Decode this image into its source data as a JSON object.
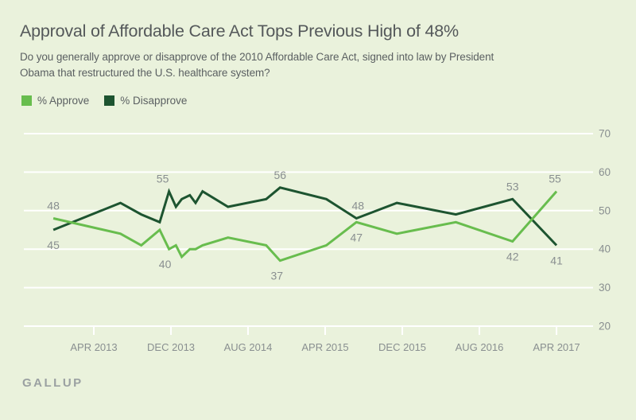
{
  "page": {
    "background": "#eaf2dc"
  },
  "header": {
    "title": "Approval of Affordable Care Act Tops Previous High of 48%",
    "subtitle_line1": "Do you generally approve or disapprove of the 2010 Affordable Care Act, signed into law by President",
    "subtitle_line2": "Obama that restructured the U.S. healthcare system?"
  },
  "legend": {
    "items": [
      {
        "label": "% Approve",
        "color": "#68bd4e"
      },
      {
        "label": "% Disapprove",
        "color": "#1d5430"
      }
    ]
  },
  "footer": {
    "brand": "GALLUP"
  },
  "colors": {
    "background": "#eaf2dc",
    "approve_line": "#68bd4e",
    "disapprove_line": "#1d5430",
    "gridline": "#ffffff",
    "axis_text": "#898f90",
    "annotation_text": "#898f90"
  },
  "chart_data": {
    "type": "line",
    "title": "Approval of Affordable Care Act Tops Previous High of 48%",
    "xlabel": "",
    "ylabel": "",
    "ylim": [
      20,
      70
    ],
    "grid": true,
    "legend_position": "top-left",
    "y_ticks": [
      70,
      60,
      50,
      40,
      30,
      20
    ],
    "x_ticks": [
      {
        "label": "APR 2013",
        "t": 2013.25
      },
      {
        "label": "DEC 2013",
        "t": 2013.917
      },
      {
        "label": "AUG 2014",
        "t": 2014.583
      },
      {
        "label": "APR 2015",
        "t": 2015.25
      },
      {
        "label": "DEC 2015",
        "t": 2015.917
      },
      {
        "label": "AUG 2016",
        "t": 2016.583
      },
      {
        "label": "APR 2017",
        "t": 2017.25
      }
    ],
    "series": [
      {
        "name": "% Approve",
        "color": "#68bd4e",
        "points": [
          {
            "t": 2012.9,
            "v": 48
          },
          {
            "t": 2013.48,
            "v": 44
          },
          {
            "t": 2013.66,
            "v": 41
          },
          {
            "t": 2013.82,
            "v": 45
          },
          {
            "t": 2013.9,
            "v": 40
          },
          {
            "t": 2013.96,
            "v": 41
          },
          {
            "t": 2014.01,
            "v": 38
          },
          {
            "t": 2014.08,
            "v": 40
          },
          {
            "t": 2014.13,
            "v": 40
          },
          {
            "t": 2014.19,
            "v": 41
          },
          {
            "t": 2014.41,
            "v": 43
          },
          {
            "t": 2014.74,
            "v": 41
          },
          {
            "t": 2014.86,
            "v": 37
          },
          {
            "t": 2015.26,
            "v": 41
          },
          {
            "t": 2015.52,
            "v": 47
          },
          {
            "t": 2015.87,
            "v": 44
          },
          {
            "t": 2016.38,
            "v": 47
          },
          {
            "t": 2016.87,
            "v": 42
          },
          {
            "t": 2017.25,
            "v": 55
          }
        ]
      },
      {
        "name": "% Disapprove",
        "color": "#1d5430",
        "points": [
          {
            "t": 2012.9,
            "v": 45
          },
          {
            "t": 2013.48,
            "v": 52
          },
          {
            "t": 2013.66,
            "v": 49
          },
          {
            "t": 2013.82,
            "v": 47
          },
          {
            "t": 2013.9,
            "v": 55
          },
          {
            "t": 2013.96,
            "v": 51
          },
          {
            "t": 2014.01,
            "v": 53
          },
          {
            "t": 2014.08,
            "v": 54
          },
          {
            "t": 2014.13,
            "v": 52
          },
          {
            "t": 2014.19,
            "v": 55
          },
          {
            "t": 2014.41,
            "v": 51
          },
          {
            "t": 2014.74,
            "v": 53
          },
          {
            "t": 2014.86,
            "v": 56
          },
          {
            "t": 2015.26,
            "v": 53
          },
          {
            "t": 2015.52,
            "v": 48
          },
          {
            "t": 2015.87,
            "v": 52
          },
          {
            "t": 2016.38,
            "v": 49
          },
          {
            "t": 2016.87,
            "v": 53
          },
          {
            "t": 2017.25,
            "v": 41
          }
        ]
      }
    ],
    "annotations": [
      {
        "t": 2012.9,
        "series": "% Approve",
        "value": 48,
        "label": "48",
        "pos": "above",
        "dx": 0
      },
      {
        "t": 2012.9,
        "series": "% Disapprove",
        "value": 45,
        "label": "45",
        "pos": "below",
        "dx": 0
      },
      {
        "t": 2013.9,
        "series": "% Disapprove",
        "value": 55,
        "label": "55",
        "pos": "above",
        "dx": -8
      },
      {
        "t": 2013.9,
        "series": "% Approve",
        "value": 40,
        "label": "40",
        "pos": "below",
        "dx": -5
      },
      {
        "t": 2014.86,
        "series": "% Disapprove",
        "value": 56,
        "label": "56",
        "pos": "above",
        "dx": 0
      },
      {
        "t": 2014.86,
        "series": "% Approve",
        "value": 37,
        "label": "37",
        "pos": "below",
        "dx": -4
      },
      {
        "t": 2015.52,
        "series": "% Disapprove",
        "value": 48,
        "label": "48",
        "pos": "above",
        "dx": 2
      },
      {
        "t": 2015.52,
        "series": "% Approve",
        "value": 47,
        "label": "47",
        "pos": "below",
        "dx": 0
      },
      {
        "t": 2016.87,
        "series": "% Disapprove",
        "value": 53,
        "label": "53",
        "pos": "above",
        "dx": 0
      },
      {
        "t": 2016.87,
        "series": "% Approve",
        "value": 42,
        "label": "42",
        "pos": "below",
        "dx": 0
      },
      {
        "t": 2017.25,
        "series": "% Approve",
        "value": 55,
        "label": "55",
        "pos": "above",
        "dx": -2
      },
      {
        "t": 2017.25,
        "series": "% Disapprove",
        "value": 41,
        "label": "41",
        "pos": "below",
        "dx": 0
      }
    ]
  }
}
